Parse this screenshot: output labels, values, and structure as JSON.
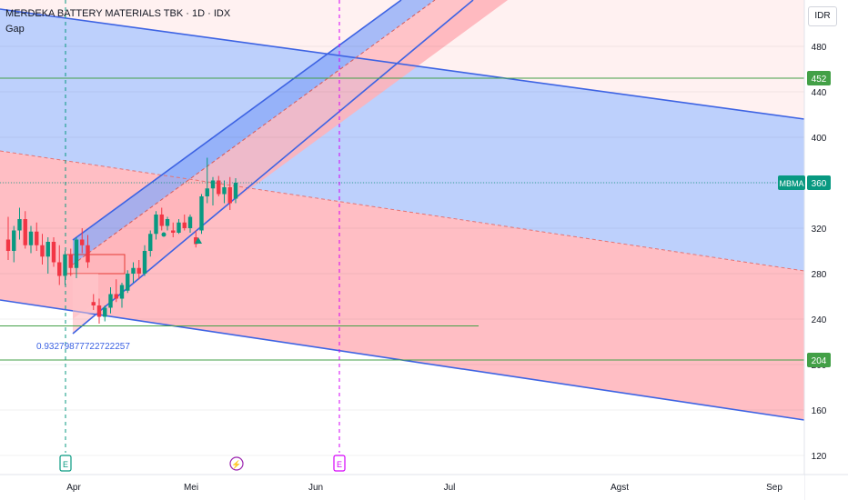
{
  "header": {
    "title": "MERDEKA BATTERY MATERIALS TBK · 1D · IDX",
    "indicator": "Gap",
    "currency": "IDR"
  },
  "chart_data": {
    "type": "candlestick",
    "symbol": "MBMA",
    "last_price": 360,
    "price_axis_labels": [
      "480",
      "440",
      "400",
      "360",
      "320",
      "280",
      "240",
      "200",
      "160",
      "120"
    ],
    "price_badges": [
      {
        "value": "452",
        "color": "#43a047"
      },
      {
        "value": "MBMA",
        "color": "#089981"
      },
      {
        "value": "360",
        "color": "#089981"
      },
      {
        "value": "204",
        "color": "#43a047"
      }
    ],
    "time_axis_labels": [
      "Apr",
      "Mei",
      "Jun",
      "Jul",
      "Agst",
      "Sep"
    ],
    "horizontal_levels": [
      {
        "value": 452,
        "color": "#43a047"
      },
      {
        "value": 204,
        "color": "#43a047"
      },
      {
        "value": 234,
        "color": "#43a047"
      }
    ],
    "fib_label": "0.93279877722722257",
    "event_markers": [
      {
        "symbol": "E",
        "color": "#089981"
      },
      {
        "symbol": "⚡",
        "color": "#9c27b0"
      },
      {
        "symbol": "E",
        "color": "#d500f9"
      }
    ],
    "candles_ohlc": [
      [
        310,
        330,
        292,
        300
      ],
      [
        300,
        322,
        290,
        318
      ],
      [
        318,
        338,
        310,
        328
      ],
      [
        328,
        335,
        302,
        305
      ],
      [
        305,
        322,
        298,
        317
      ],
      [
        317,
        325,
        300,
        305
      ],
      [
        305,
        315,
        288,
        295
      ],
      [
        295,
        312,
        280,
        308
      ],
      [
        308,
        312,
        286,
        290
      ],
      [
        290,
        305,
        270,
        278
      ],
      [
        278,
        300,
        270,
        297
      ],
      [
        297,
        302,
        278,
        285
      ],
      [
        285,
        312,
        276,
        310
      ],
      [
        310,
        320,
        298,
        305
      ],
      [
        305,
        314,
        285,
        290
      ],
      [
        255,
        262,
        248,
        252
      ],
      [
        252,
        258,
        236,
        242
      ],
      [
        242,
        252,
        238,
        250
      ],
      [
        250,
        268,
        245,
        262
      ],
      [
        262,
        275,
        255,
        258
      ],
      [
        258,
        272,
        250,
        270
      ],
      [
        265,
        283,
        263,
        280
      ],
      [
        280,
        290,
        272,
        285
      ],
      [
        285,
        292,
        275,
        280
      ],
      [
        280,
        305,
        278,
        300
      ],
      [
        300,
        318,
        295,
        315
      ],
      [
        315,
        335,
        310,
        332
      ],
      [
        332,
        338,
        318,
        322
      ],
      [
        322,
        330,
        318,
        328
      ],
      [
        318,
        325,
        312,
        316
      ],
      [
        316,
        328,
        315,
        325
      ],
      [
        325,
        332,
        318,
        320
      ],
      [
        320,
        332,
        316,
        330
      ],
      [
        312,
        318,
        303,
        306
      ],
      [
        318,
        350,
        315,
        348
      ],
      [
        348,
        382,
        342,
        355
      ],
      [
        355,
        365,
        340,
        362
      ],
      [
        362,
        366,
        348,
        350
      ],
      [
        350,
        362,
        342,
        356
      ],
      [
        356,
        365,
        336,
        342
      ],
      [
        346,
        364,
        342,
        360
      ]
    ]
  }
}
